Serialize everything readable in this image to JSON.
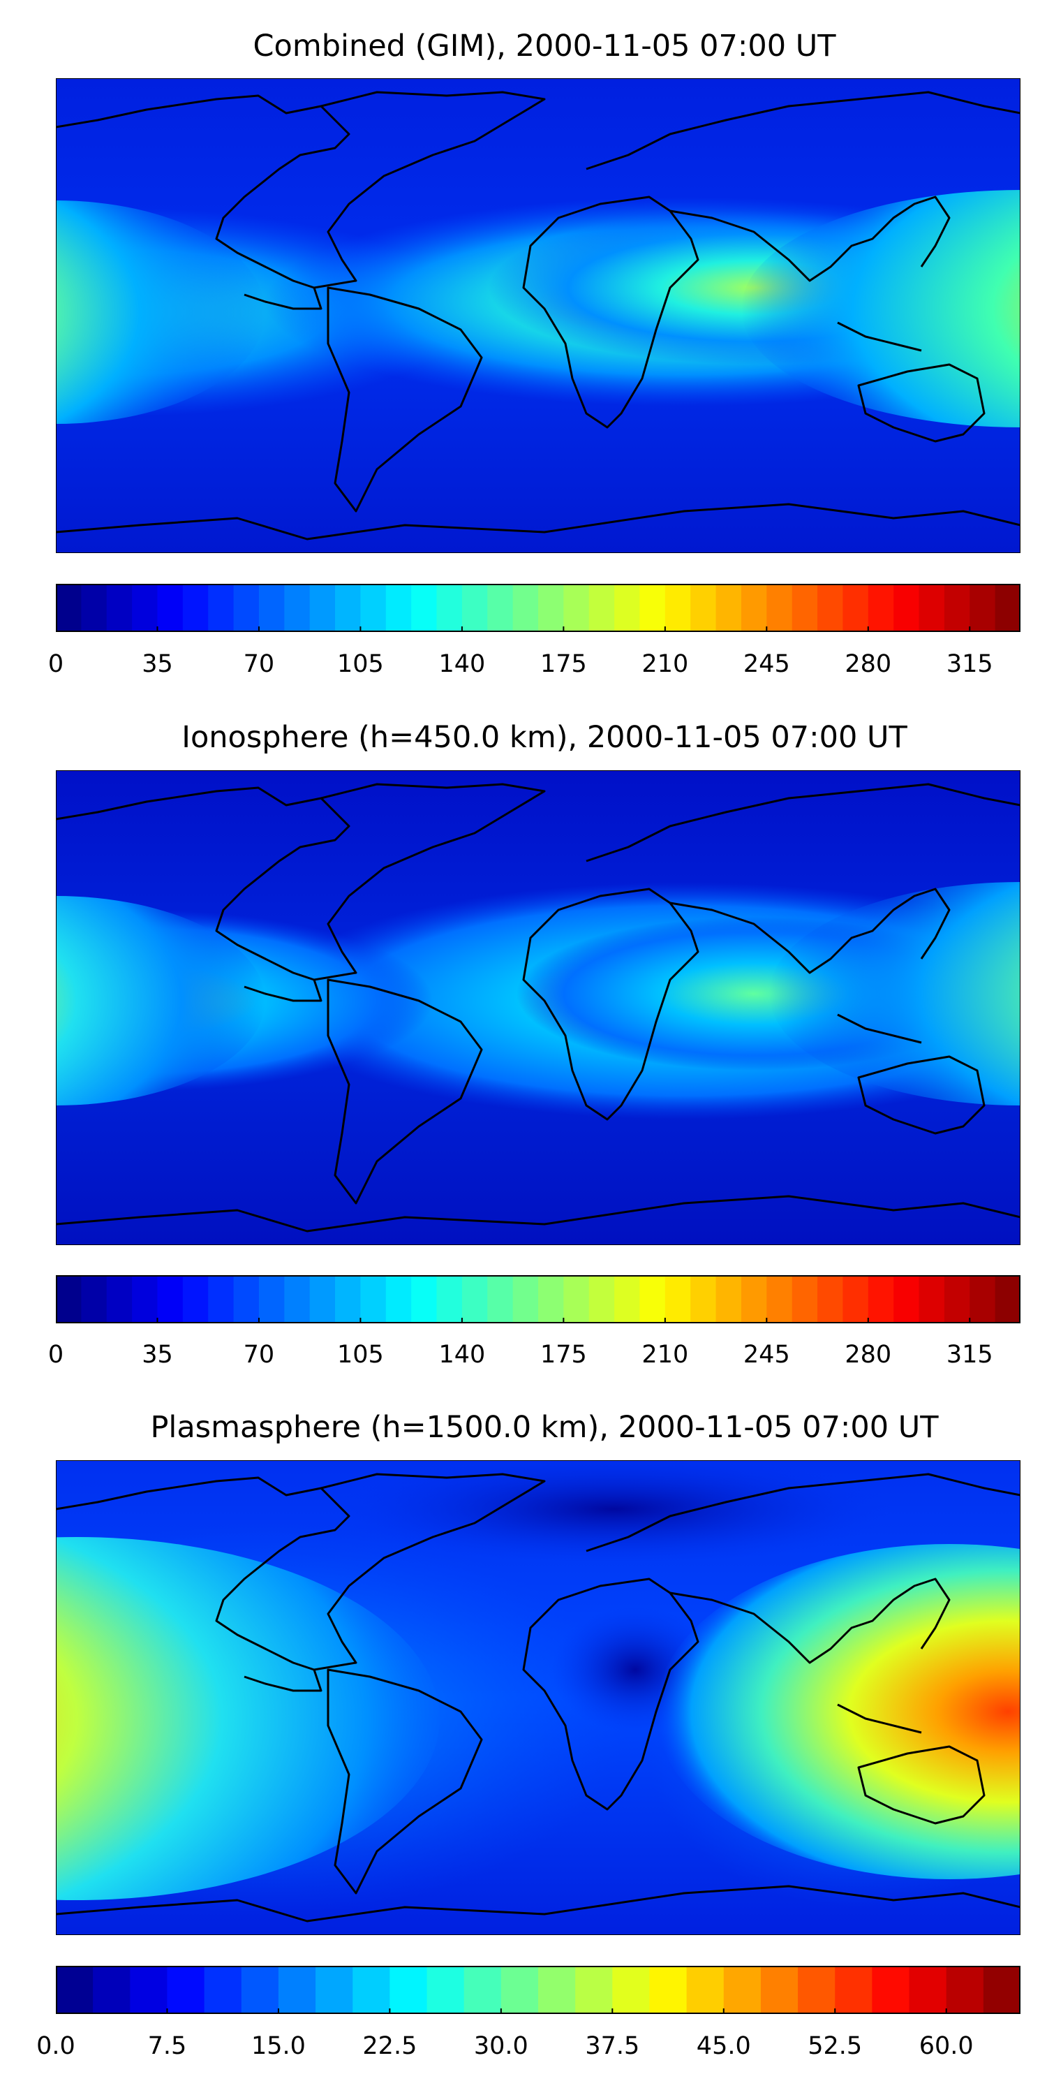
{
  "panels": [
    {
      "id": "combined",
      "title": "Combined (GIM), 2000-11-05 07:00 UT",
      "colorbar": {
        "min": 0,
        "max": 332.5,
        "levels": 38,
        "ticks": [
          "0",
          "35",
          "70",
          "105",
          "140",
          "175",
          "210",
          "245",
          "280",
          "315"
        ],
        "tick_values": [
          0,
          35,
          70,
          105,
          140,
          175,
          210,
          245,
          280,
          315
        ]
      }
    },
    {
      "id": "ionosphere",
      "title": "Ionosphere  (h=450.0 km), 2000-11-05 07:00 UT",
      "colorbar": {
        "min": 0,
        "max": 332.5,
        "levels": 38,
        "ticks": [
          "0",
          "35",
          "70",
          "105",
          "140",
          "175",
          "210",
          "245",
          "280",
          "315"
        ],
        "tick_values": [
          0,
          35,
          70,
          105,
          140,
          175,
          210,
          245,
          280,
          315
        ]
      }
    },
    {
      "id": "plasmasphere",
      "title": "Plasmasphere (h=1500.0 km), 2000-11-05 07:00 UT",
      "colorbar": {
        "min": 0,
        "max": 65,
        "levels": 26,
        "ticks": [
          "0.0",
          "7.5",
          "15.0",
          "22.5",
          "30.0",
          "37.5",
          "45.0",
          "52.5",
          "60.0"
        ],
        "tick_values": [
          0,
          7.5,
          15,
          22.5,
          30,
          37.5,
          45,
          52.5,
          60
        ]
      }
    }
  ],
  "colormap": "jet"
}
